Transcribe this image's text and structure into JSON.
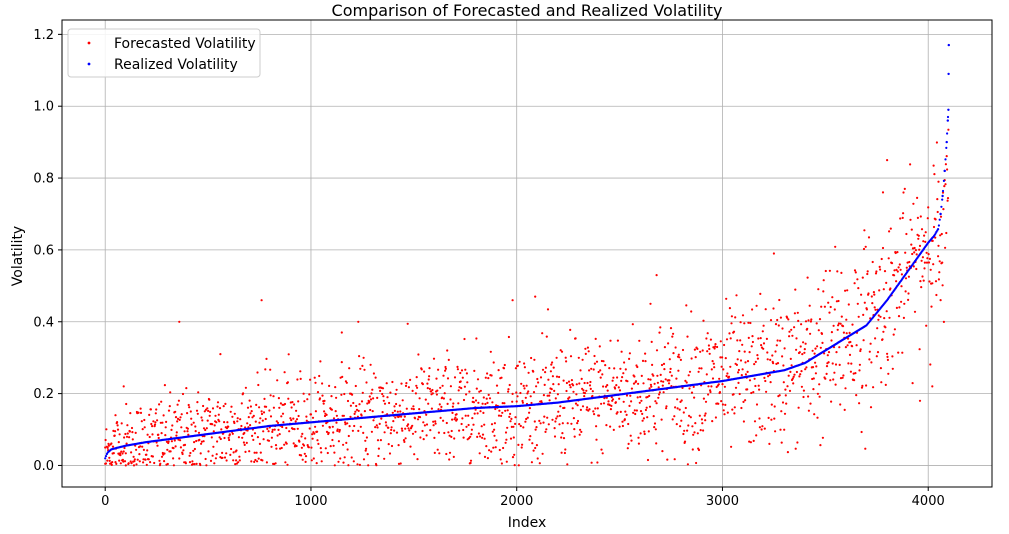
{
  "chart_data": {
    "type": "scatter",
    "title": "Comparison of Forecasted and Realized Volatility",
    "xlabel": "Index",
    "ylabel": "Volatility",
    "xlim": [
      -210,
      4310
    ],
    "ylim": [
      -0.06,
      1.24
    ],
    "xticks": [
      0,
      1000,
      2000,
      3000,
      4000
    ],
    "yticks": [
      0.0,
      0.2,
      0.4,
      0.6,
      0.8,
      1.0,
      1.2
    ],
    "grid": true,
    "legend_position": "top-left",
    "n_points": 4100,
    "series": [
      {
        "name": "Forecasted Volatility",
        "color": "#ff0000",
        "marker": "dot",
        "description_points": [
          [
            0,
            0.05
          ],
          [
            50,
            0.14
          ],
          [
            70,
            0.03
          ],
          [
            90,
            0.22
          ],
          [
            100,
            0.0
          ],
          [
            360,
            0.4
          ],
          [
            560,
            0.31
          ],
          [
            760,
            0.46
          ],
          [
            1150,
            0.37
          ],
          [
            1230,
            0.4
          ],
          [
            1980,
            0.46
          ],
          [
            2090,
            0.47
          ],
          [
            2650,
            0.45
          ],
          [
            2680,
            0.53
          ],
          [
            3250,
            0.59
          ],
          [
            3800,
            0.85
          ],
          [
            3780,
            0.76
          ],
          [
            4050,
            0.79
          ],
          [
            3960,
            0.18
          ],
          [
            4020,
            0.22
          ]
        ]
      },
      {
        "name": "Realized Volatility",
        "color": "#0000ff",
        "marker": "dot",
        "curve_points": [
          [
            0,
            0.02
          ],
          [
            10,
            0.035
          ],
          [
            30,
            0.045
          ],
          [
            100,
            0.055
          ],
          [
            200,
            0.065
          ],
          [
            400,
            0.08
          ],
          [
            600,
            0.095
          ],
          [
            800,
            0.11
          ],
          [
            1000,
            0.12
          ],
          [
            1200,
            0.13
          ],
          [
            1400,
            0.14
          ],
          [
            1600,
            0.15
          ],
          [
            1800,
            0.16
          ],
          [
            2000,
            0.165
          ],
          [
            2200,
            0.175
          ],
          [
            2400,
            0.19
          ],
          [
            2600,
            0.205
          ],
          [
            2800,
            0.22
          ],
          [
            3000,
            0.235
          ],
          [
            3200,
            0.255
          ],
          [
            3300,
            0.265
          ],
          [
            3400,
            0.285
          ],
          [
            3500,
            0.32
          ],
          [
            3600,
            0.355
          ],
          [
            3700,
            0.39
          ],
          [
            3800,
            0.46
          ],
          [
            3850,
            0.5
          ],
          [
            3900,
            0.54
          ],
          [
            3950,
            0.58
          ],
          [
            4000,
            0.62
          ],
          [
            4030,
            0.64
          ],
          [
            4050,
            0.66
          ],
          [
            4060,
            0.7
          ],
          [
            4070,
            0.75
          ],
          [
            4080,
            0.82
          ],
          [
            4090,
            0.9
          ],
          [
            4095,
            0.96
          ],
          [
            4098,
            0.99
          ],
          [
            4099,
            1.09
          ],
          [
            4100,
            1.17
          ]
        ]
      }
    ]
  }
}
